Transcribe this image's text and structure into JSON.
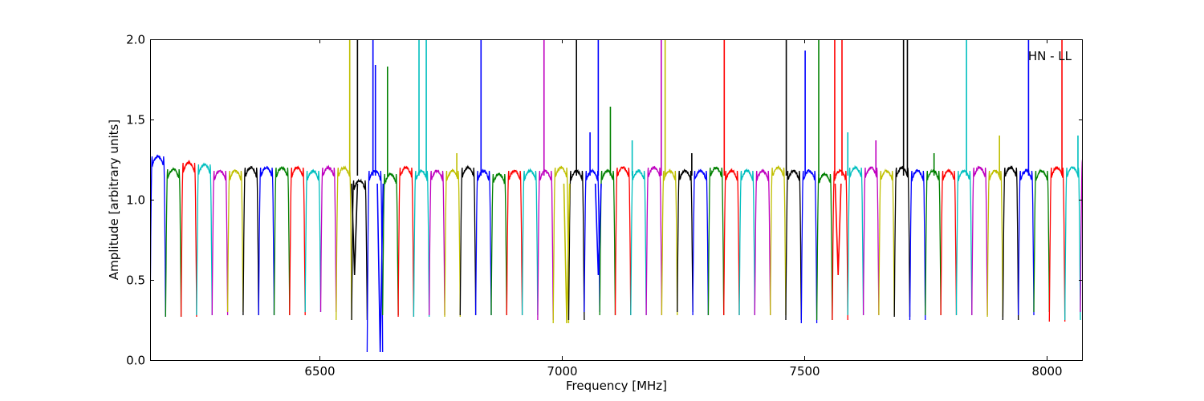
{
  "chart_data": {
    "type": "line",
    "title": "",
    "annotation": "HN - LL",
    "xlabel": "Frequency [MHz]",
    "ylabel": "Amplitude [arbitrary units]",
    "xlim": [
      6150,
      8075
    ],
    "ylim": [
      0.0,
      2.0
    ],
    "x_ticks": [
      6500,
      7000,
      7500,
      8000
    ],
    "x_tick_labels": [
      "6500",
      "7000",
      "7500",
      "8000"
    ],
    "y_ticks": [
      0.0,
      0.5,
      1.0,
      1.5,
      2.0
    ],
    "y_tick_labels": [
      "0.0",
      "0.5",
      "1.0",
      "1.5",
      "2.0"
    ],
    "grid": false,
    "legend": "none",
    "channel_width_mhz": 32,
    "first_channel_start_mhz": 6150,
    "color_cycle": [
      "#0000ff",
      "#008000",
      "#ff0000",
      "#00bfbf",
      "#bf00bf",
      "#bfbf00",
      "#000000"
    ],
    "channel_peaks": [
      1.27,
      1.19,
      1.23,
      1.22,
      1.18,
      1.18,
      1.2,
      1.2,
      1.2,
      1.2,
      1.18,
      1.2,
      1.2,
      1.12,
      1.18,
      1.16,
      1.2,
      1.18,
      1.18,
      1.18,
      1.2,
      1.18,
      1.16,
      1.18,
      1.18,
      1.18,
      1.2,
      1.18,
      1.18,
      1.18,
      1.2,
      1.18,
      1.2,
      1.18,
      1.18,
      1.18,
      1.2,
      1.18,
      1.18,
      1.18,
      1.2,
      1.18,
      1.18,
      1.16,
      1.18,
      1.2,
      1.2,
      1.18,
      1.2,
      1.18,
      1.18,
      1.18,
      1.18,
      1.2,
      1.18,
      1.2,
      1.18,
      1.18,
      1.2,
      1.2,
      1.25
    ],
    "channel_minima": [
      0.27,
      0.27,
      0.27,
      0.28,
      0.28,
      0.3,
      0.28,
      0.28,
      0.28,
      0.28,
      0.3,
      0.3,
      0.25,
      0.25,
      0.05,
      0.28,
      0.27,
      0.27,
      0.28,
      0.27,
      0.28,
      0.28,
      0.28,
      0.28,
      0.28,
      0.25,
      0.23,
      0.25,
      0.3,
      0.28,
      0.28,
      0.28,
      0.28,
      0.28,
      0.3,
      0.28,
      0.28,
      0.28,
      0.28,
      0.28,
      0.28,
      0.25,
      0.23,
      0.25,
      0.25,
      0.28,
      0.28,
      0.28,
      0.27,
      0.25,
      0.28,
      0.28,
      0.28,
      0.28,
      0.27,
      0.25,
      0.28,
      0.3,
      0.24,
      0.25,
      0.3
    ],
    "spikes": [
      {
        "x": 6562,
        "y": 2.0
      },
      {
        "x": 6578,
        "y": 2.0
      },
      {
        "x": 6610,
        "y": 2.0
      },
      {
        "x": 6615,
        "y": 1.84
      },
      {
        "x": 6640,
        "y": 1.83
      },
      {
        "x": 6705,
        "y": 2.0
      },
      {
        "x": 6720,
        "y": 2.0
      },
      {
        "x": 6783,
        "y": 1.29
      },
      {
        "x": 6833,
        "y": 2.0
      },
      {
        "x": 6963,
        "y": 2.0
      },
      {
        "x": 7030,
        "y": 2.0
      },
      {
        "x": 7058,
        "y": 1.42
      },
      {
        "x": 7075,
        "y": 2.0
      },
      {
        "x": 7100,
        "y": 1.58
      },
      {
        "x": 7145,
        "y": 1.37
      },
      {
        "x": 7205,
        "y": 2.0
      },
      {
        "x": 7213,
        "y": 2.0
      },
      {
        "x": 7268,
        "y": 1.29
      },
      {
        "x": 7335,
        "y": 2.0
      },
      {
        "x": 7463,
        "y": 2.0
      },
      {
        "x": 7502,
        "y": 1.93
      },
      {
        "x": 7530,
        "y": 2.0
      },
      {
        "x": 7563,
        "y": 2.0
      },
      {
        "x": 7578,
        "y": 2.0
      },
      {
        "x": 7590,
        "y": 1.42
      },
      {
        "x": 7648,
        "y": 1.37
      },
      {
        "x": 7705,
        "y": 2.0
      },
      {
        "x": 7713,
        "y": 2.0
      },
      {
        "x": 7768,
        "y": 1.29
      },
      {
        "x": 7835,
        "y": 2.0
      },
      {
        "x": 7903,
        "y": 1.4
      },
      {
        "x": 7963,
        "y": 2.0
      },
      {
        "x": 8032,
        "y": 2.0
      },
      {
        "x": 8065,
        "y": 1.4
      }
    ],
    "deep_dips": [
      {
        "x": 6572,
        "y": 0.53
      },
      {
        "x": 6625,
        "y": 0.05
      },
      {
        "x": 7075,
        "y": 0.53
      },
      {
        "x": 7570,
        "y": 0.53
      },
      {
        "x": 7010,
        "y": 0.23
      }
    ]
  }
}
